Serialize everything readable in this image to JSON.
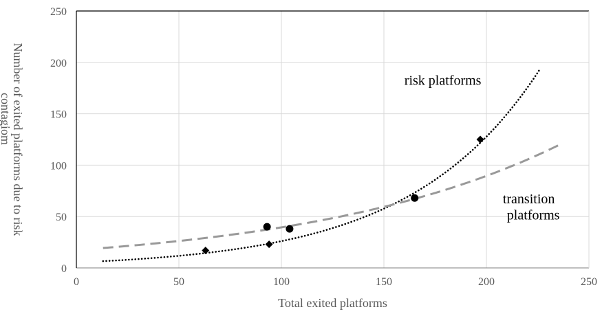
{
  "chart_data": {
    "type": "scatter",
    "title": "",
    "xlabel": "Total exited platforms",
    "ylabel": "Number of exited platforms due to risk contagiom",
    "ylabel_lines": [
      "Number of exited platforms due to risk",
      "contagiom"
    ],
    "xlim": [
      0,
      250
    ],
    "ylim": [
      0,
      250
    ],
    "xticks": [
      0,
      50,
      100,
      150,
      200,
      250
    ],
    "yticks": [
      0,
      50,
      100,
      150,
      200,
      250
    ],
    "grid": true,
    "legend": "none",
    "series": [
      {
        "marker": "diamond",
        "color": "#000000",
        "points": [
          {
            "x": 63,
            "y": 17
          },
          {
            "x": 94,
            "y": 23
          },
          {
            "x": 197,
            "y": 125
          }
        ],
        "trend": {
          "kind": "exponential",
          "style": "dotted",
          "color": "#000000",
          "x_range": [
            13,
            226
          ],
          "equation_params": {
            "a": 5.31,
            "b": 0.0159
          }
        }
      },
      {
        "marker": "circle",
        "color": "#000000",
        "points": [
          {
            "x": 93,
            "y": 40
          },
          {
            "x": 104,
            "y": 38
          },
          {
            "x": 165,
            "y": 68
          }
        ],
        "trend": {
          "kind": "exponential",
          "style": "dashed",
          "color": "#999999",
          "x_range": [
            13,
            235
          ],
          "equation_params": {
            "a": 17.4,
            "b": 0.00819
          }
        }
      }
    ],
    "annotations": [
      {
        "text": "risk platforms",
        "x": 160,
        "y": 178
      },
      {
        "text": "transition",
        "x": 208,
        "y": 63
      },
      {
        "text": "platforms",
        "x": 210,
        "y": 47
      }
    ]
  }
}
